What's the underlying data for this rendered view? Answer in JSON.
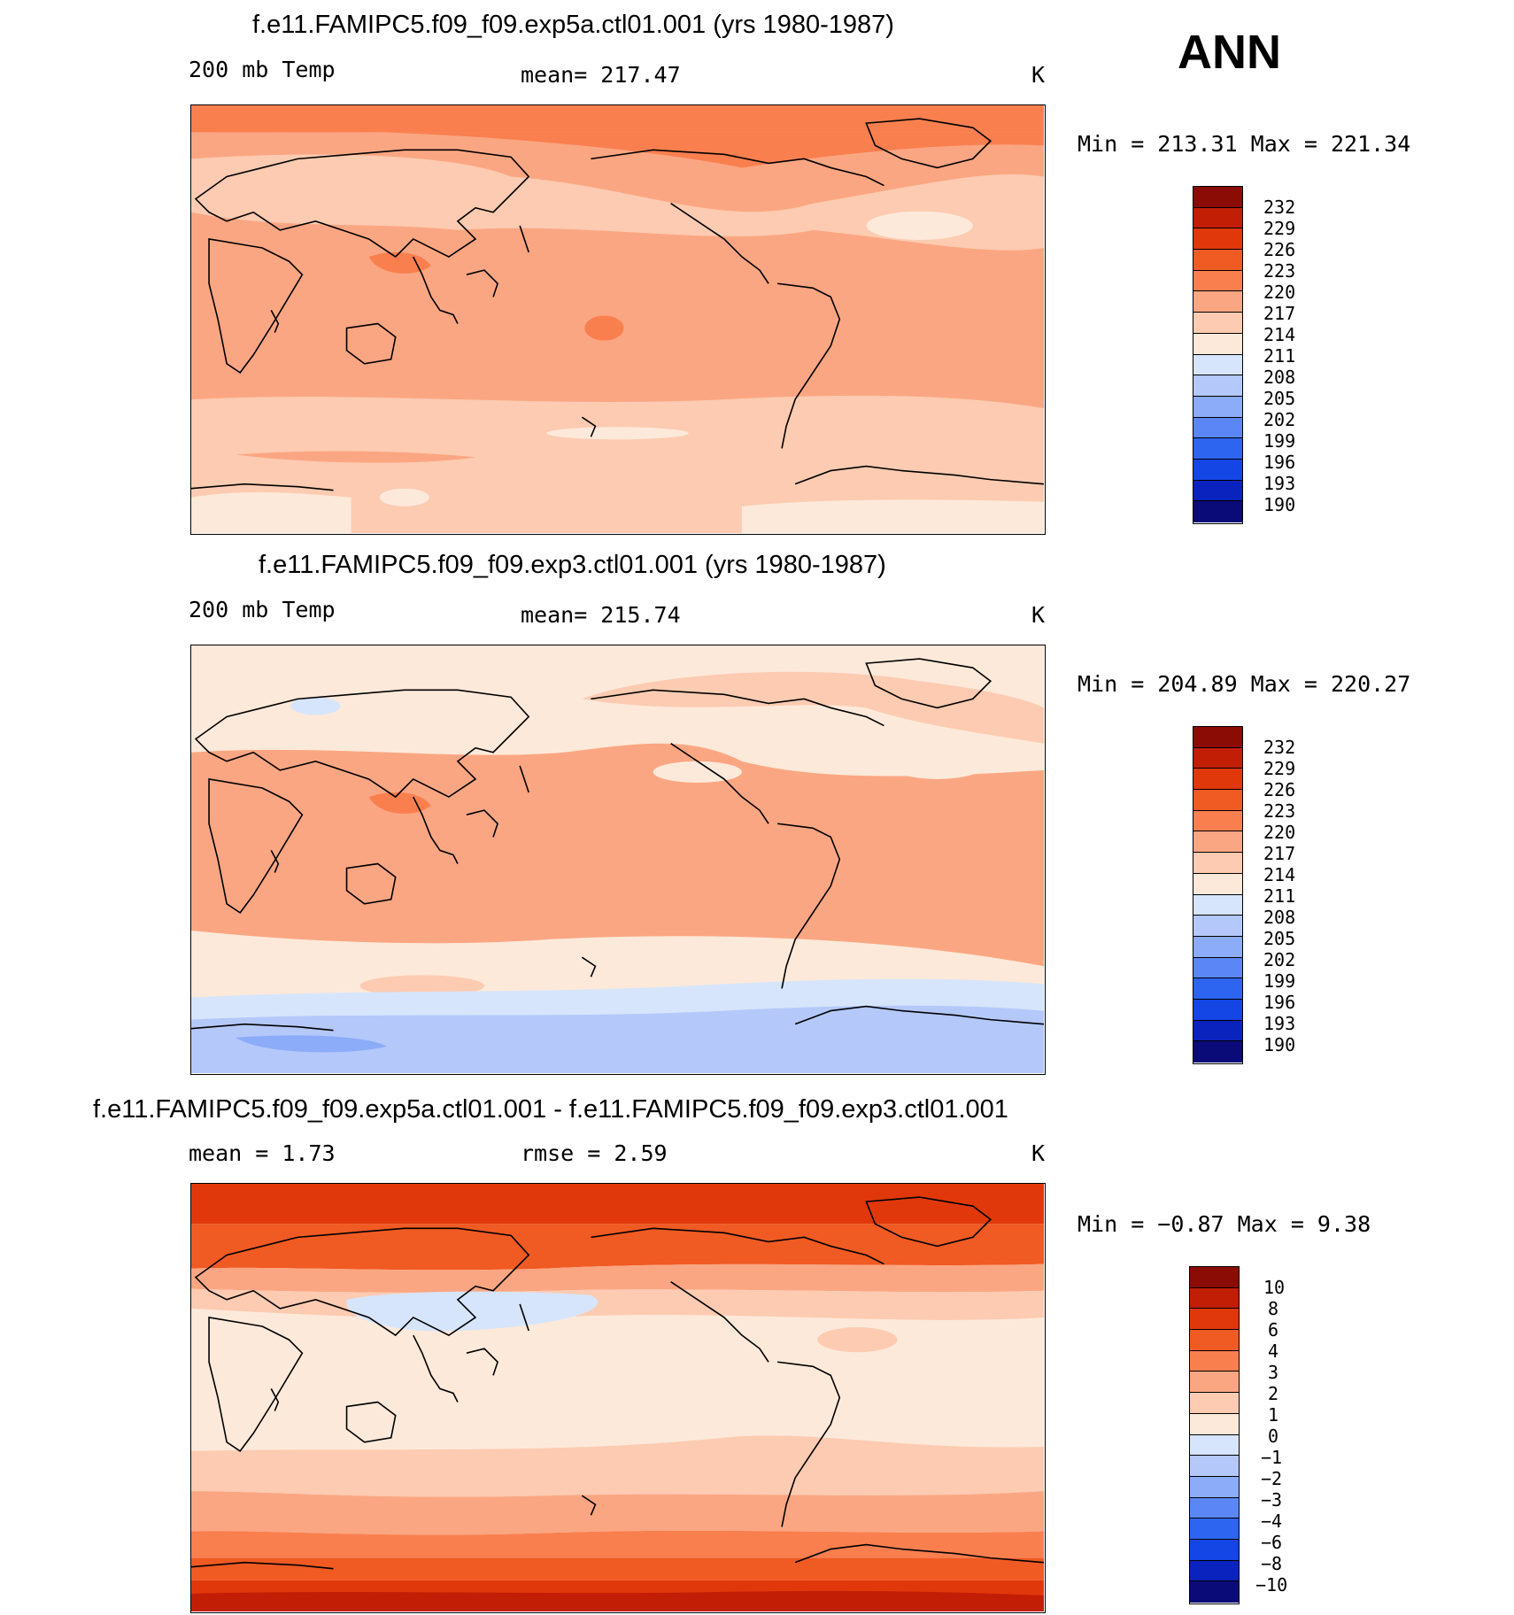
{
  "ann_label": "ANN",
  "colors": {
    "abs_scale": [
      "#0a0a78",
      "#0a23be",
      "#1446e6",
      "#2d64f0",
      "#5a87f5",
      "#8cabf8",
      "#b4c8fa",
      "#d6e5fb",
      "#fde9da",
      "#fccbb1",
      "#fba682",
      "#f97f4f",
      "#f05a23",
      "#e0380a",
      "#c21e06",
      "#8b0b05"
    ],
    "diff_scale": [
      "#0a0a78",
      "#0a23be",
      "#1446e6",
      "#2d64f0",
      "#5a87f5",
      "#8cabf8",
      "#b4c8fa",
      "#d6e5fb",
      "#fde9da",
      "#fccbb1",
      "#fba682",
      "#f97f4f",
      "#f05a23",
      "#e0380a",
      "#c21e06",
      "#8b0b05"
    ]
  },
  "panels": [
    {
      "title": "f.e11.FAMIPC5.f09_f09.exp5a.ctl01.001 (yrs 1980-1987)",
      "left_label": "200 mb Temp",
      "center_label": "mean= 217.47",
      "units": "K",
      "minmax": "Min = 213.31 Max = 221.34"
    },
    {
      "title": "f.e11.FAMIPC5.f09_f09.exp3.ctl01.001 (yrs 1980-1987)",
      "left_label": "200 mb Temp",
      "center_label": "mean= 215.74",
      "units": "K",
      "minmax": "Min = 204.89 Max = 220.27"
    },
    {
      "title": "f.e11.FAMIPC5.f09_f09.exp5a.ctl01.001 - f.e11.FAMIPC5.f09_f09.exp3.ctl01.001",
      "left_label": "mean =    1.73",
      "center_label": "rmse =    2.59",
      "units": "K",
      "minmax": "Min =  −0.87 Max =    9.38"
    }
  ],
  "chart_data": [
    {
      "type": "heatmap",
      "title": "f.e11.FAMIPC5.f09_f09.exp5a.ctl01.001 (yrs 1980-1987)",
      "variable": "200 mb Temp",
      "units": "K",
      "mean": 217.47,
      "min": 213.31,
      "max": 221.34,
      "colorbar_levels": [
        "232",
        "229",
        "226",
        "223",
        "220",
        "217",
        "214",
        "211",
        "208",
        "205",
        "202",
        "199",
        "196",
        "193",
        "190"
      ],
      "zonal_bands_K": [
        {
          "lat_range": [
            70,
            90
          ],
          "value": 221
        },
        {
          "lat_range": [
            50,
            70
          ],
          "value": 218
        },
        {
          "lat_range": [
            25,
            50
          ],
          "value": 215
        },
        {
          "lat_range": [
            -30,
            25
          ],
          "value": 218
        },
        {
          "lat_range": [
            -60,
            -30
          ],
          "value": 215
        },
        {
          "lat_range": [
            -90,
            -60
          ],
          "value": 213
        }
      ]
    },
    {
      "type": "heatmap",
      "title": "f.e11.FAMIPC5.f09_f09.exp3.ctl01.001 (yrs 1980-1987)",
      "variable": "200 mb Temp",
      "units": "K",
      "mean": 215.74,
      "min": 204.89,
      "max": 220.27,
      "colorbar_levels": [
        "232",
        "229",
        "226",
        "223",
        "220",
        "217",
        "214",
        "211",
        "208",
        "205",
        "202",
        "199",
        "196",
        "193",
        "190"
      ],
      "zonal_bands_K": [
        {
          "lat_range": [
            50,
            90
          ],
          "value": 212
        },
        {
          "lat_range": [
            25,
            50
          ],
          "value": 214
        },
        {
          "lat_range": [
            -30,
            25
          ],
          "value": 218
        },
        {
          "lat_range": [
            -50,
            -30
          ],
          "value": 213
        },
        {
          "lat_range": [
            -60,
            -50
          ],
          "value": 210
        },
        {
          "lat_range": [
            -90,
            -60
          ],
          "value": 206
        }
      ]
    },
    {
      "type": "heatmap",
      "title": "f.e11.FAMIPC5.f09_f09.exp5a.ctl01.001 - f.e11.FAMIPC5.f09_f09.exp3.ctl01.001",
      "units": "K",
      "mean": 1.73,
      "rmse": 2.59,
      "min": -0.87,
      "max": 9.38,
      "colorbar_levels": [
        "10",
        "8",
        "6",
        "4",
        "3",
        "2",
        "1",
        "0",
        "−1",
        "−2",
        "−3",
        "−4",
        "−6",
        "−8",
        "−10"
      ],
      "zonal_bands_K": [
        {
          "lat_range": [
            75,
            90
          ],
          "value": 7
        },
        {
          "lat_range": [
            60,
            75
          ],
          "value": 5
        },
        {
          "lat_range": [
            45,
            60
          ],
          "value": 2.5
        },
        {
          "lat_range": [
            -40,
            45
          ],
          "value": 0.5
        },
        {
          "lat_range": [
            -55,
            -40
          ],
          "value": 2.5
        },
        {
          "lat_range": [
            -70,
            -55
          ],
          "value": 5
        },
        {
          "lat_range": [
            -90,
            -70
          ],
          "value": 9
        }
      ]
    }
  ]
}
